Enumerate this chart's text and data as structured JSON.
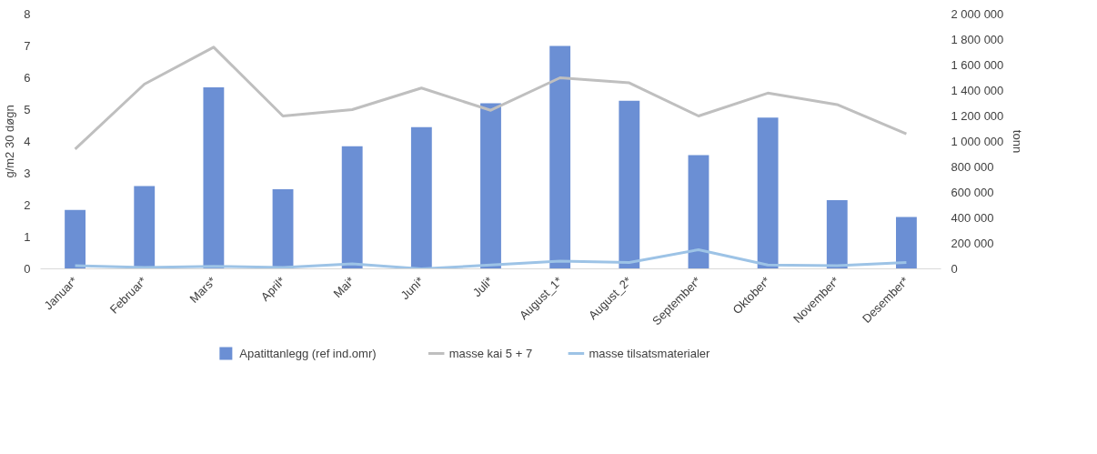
{
  "chart_data": {
    "type": "bar",
    "categories": [
      "Januar*",
      "Februar*",
      "Mars*",
      "April*",
      "Mai*",
      "Juni*",
      "Juli*",
      "August_1*",
      "August_2*",
      "September*",
      "Oktober*",
      "November*",
      "Desember*"
    ],
    "ylabel": "g/m2 30 døgn",
    "y2label": "tonn",
    "ylim": [
      0,
      8
    ],
    "yticks": [
      0,
      1,
      2,
      3,
      4,
      5,
      6,
      7,
      8
    ],
    "y2lim": [
      0,
      2000000
    ],
    "y2ticks": [
      {
        "value": 0,
        "label": "0"
      },
      {
        "value": 200000,
        "label": "200 000"
      },
      {
        "value": 400000,
        "label": "400 000"
      },
      {
        "value": 600000,
        "label": "600 000"
      },
      {
        "value": 800000,
        "label": "800 000"
      },
      {
        "value": 1000000,
        "label": "1 000 000"
      },
      {
        "value": 1200000,
        "label": "1 200 000"
      },
      {
        "value": 1400000,
        "label": "1 400 000"
      },
      {
        "value": 1600000,
        "label": "1 600 000"
      },
      {
        "value": 1800000,
        "label": "1 800 000"
      },
      {
        "value": 2000000,
        "label": "2 000 000"
      }
    ],
    "series": [
      {
        "name": "Apatittanlegg (ref ind.omr)",
        "color": "#6b8fd4",
        "values": [
          1.85,
          2.6,
          5.7,
          2.5,
          3.85,
          4.45,
          5.2,
          7.0,
          5.28,
          3.57,
          4.75,
          2.16,
          1.63
        ]
      },
      {
        "name": "masse kai 5 + 7",
        "type": "line",
        "axis": "y2",
        "color": "#bfbfbf",
        "values": [
          940000,
          1450000,
          1740000,
          1200000,
          1250000,
          1420000,
          1245000,
          1500000,
          1460000,
          1200000,
          1380000,
          1290000,
          1060000
        ]
      },
      {
        "name": "masse tilsatsmaterialer",
        "type": "line",
        "axis": "y2",
        "color": "#9dc3e6",
        "values": [
          25000,
          10000,
          20000,
          10000,
          40000,
          0,
          30000,
          60000,
          50000,
          150000,
          30000,
          25000,
          50000
        ]
      }
    ],
    "grid": false,
    "legend": "bottom",
    "marker": "none",
    "line_style": "solid"
  }
}
